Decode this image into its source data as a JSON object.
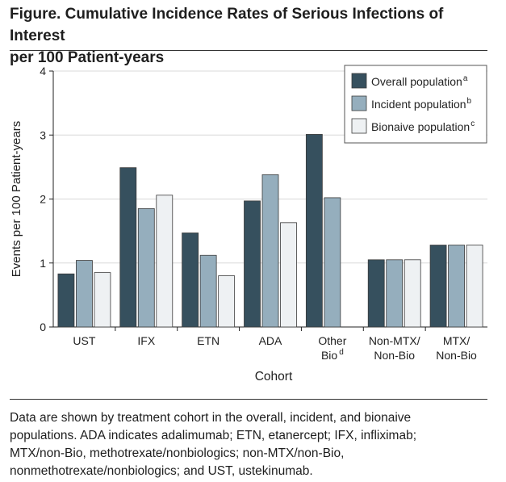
{
  "figure": {
    "title_line1": "Figure. Cumulative Incidence Rates of Serious Infections of Interest",
    "title_line2": "per 100 Patient-years",
    "caption": [
      "Data are shown by treatment cohort in the overall, incident, and bionaive",
      "populations. ADA indicates adalimumab; ETN, etanercept; IFX, infliximab;",
      "MTX/non-Bio, methotrexate/nonbiologics; non-MTX/non-Bio,",
      "nonmethotrexate/nonbiologics; and UST, ustekinumab."
    ]
  },
  "chart_data": {
    "type": "bar",
    "xlabel": "Cohort",
    "ylabel": "Events per 100 Patient-years",
    "ylim": [
      0,
      4
    ],
    "yticks": [
      "0",
      "1",
      "2",
      "3",
      "4"
    ],
    "grid": true,
    "legend_position": "top-right",
    "categories": [
      {
        "label": [
          "UST"
        ],
        "superscript": ""
      },
      {
        "label": [
          "IFX"
        ],
        "superscript": ""
      },
      {
        "label": [
          "ETN"
        ],
        "superscript": ""
      },
      {
        "label": [
          "ADA"
        ],
        "superscript": ""
      },
      {
        "label": [
          "Other",
          "Bio"
        ],
        "superscript": "d"
      },
      {
        "label": [
          "Non-MTX/",
          "Non-Bio"
        ],
        "superscript": ""
      },
      {
        "label": [
          "MTX/",
          "Non-Bio"
        ],
        "superscript": ""
      }
    ],
    "series": [
      {
        "name": "Overall population",
        "superscript": "a",
        "color": "#36505e",
        "values": [
          0.83,
          2.49,
          1.47,
          1.97,
          3.01,
          1.05,
          1.28
        ]
      },
      {
        "name": "Incident population",
        "superscript": "b",
        "color": "#95aebd",
        "values": [
          1.04,
          1.85,
          1.12,
          2.38,
          2.02,
          1.05,
          1.28
        ]
      },
      {
        "name": "Bionaive population",
        "superscript": "c",
        "color": "#eef1f3",
        "values": [
          0.85,
          2.06,
          0.8,
          1.63,
          null,
          1.05,
          1.28
        ]
      }
    ]
  }
}
